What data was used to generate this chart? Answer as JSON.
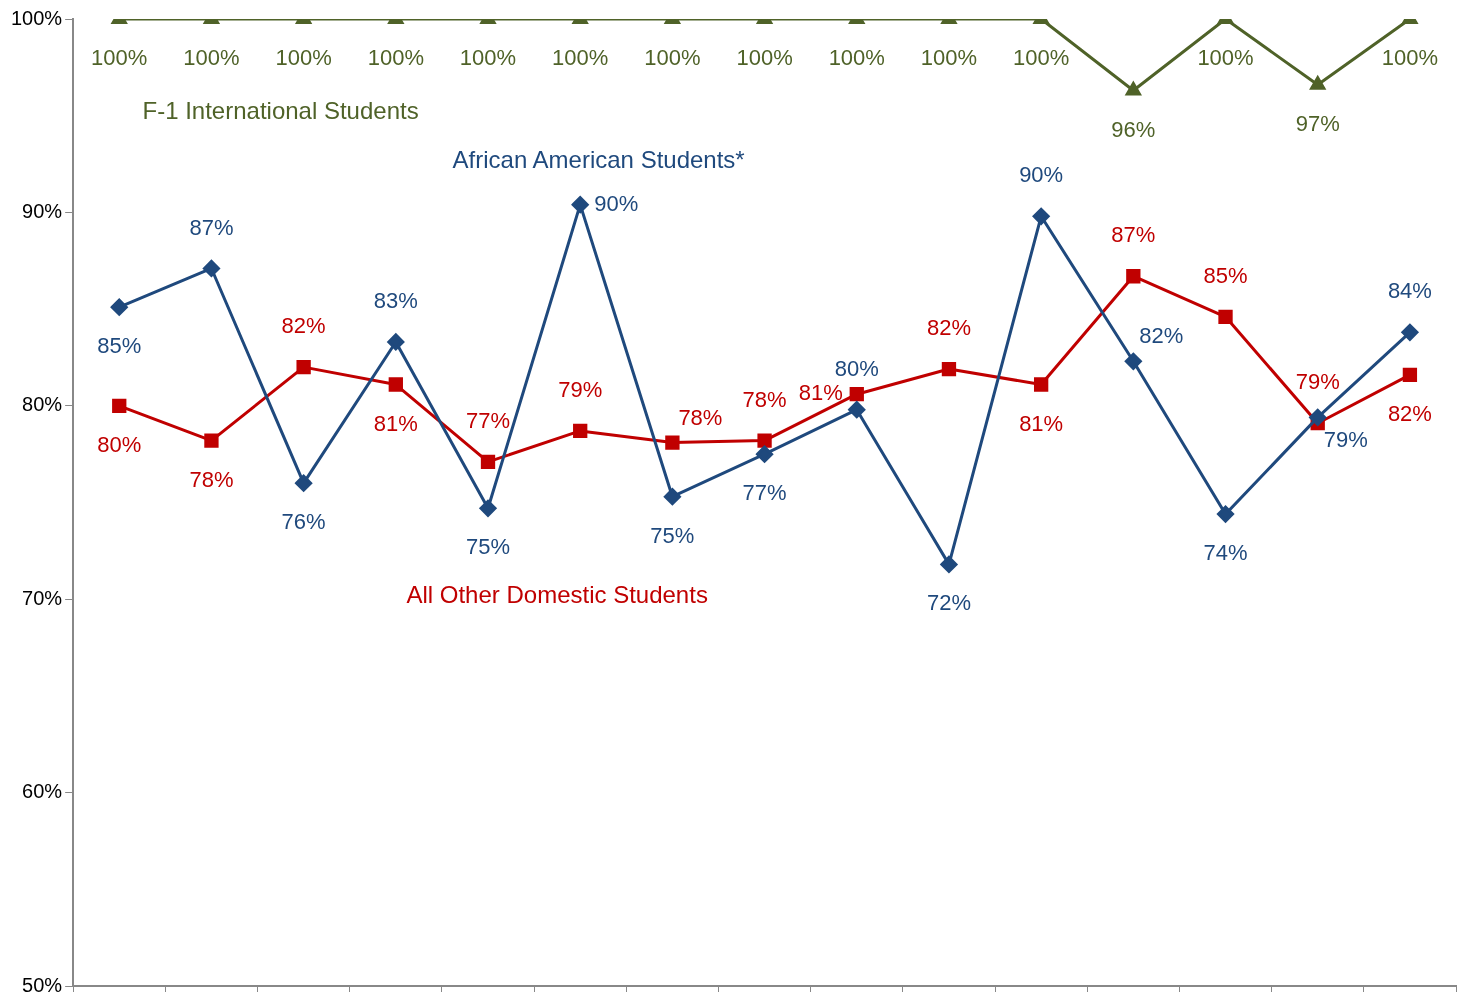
{
  "chart_data": {
    "type": "line",
    "categories": [
      null,
      null,
      null,
      null,
      null,
      null,
      null,
      null,
      null,
      null,
      null,
      null,
      null,
      null,
      null
    ],
    "series": [
      {
        "name": "F-1 International Students",
        "color": "#4f6228",
        "marker": "triangle",
        "values": [
          100,
          100,
          100,
          100,
          100,
          100,
          100,
          100,
          100,
          100,
          100,
          96.3,
          100,
          96.6,
          100
        ],
        "value_labels": [
          "100%",
          "100%",
          "100%",
          "100%",
          "100%",
          "100%",
          "100%",
          "100%",
          "100%",
          "100%",
          "100%",
          "96%",
          "100%",
          "97%",
          "100%"
        ]
      },
      {
        "name": "African American Students*",
        "color": "#1f497d",
        "marker": "diamond",
        "values": [
          85.1,
          87.1,
          76.0,
          83.3,
          74.7,
          90.4,
          75.3,
          77.5,
          79.8,
          71.8,
          89.8,
          82.3,
          74.4,
          79.4,
          83.8
        ],
        "value_labels": [
          "85%",
          "87%",
          "76%",
          "83%",
          "75%",
          "90%",
          "75%",
          "77%",
          "80%",
          "72%",
          "90%",
          "82%",
          "74%",
          "79%",
          "84%"
        ]
      },
      {
        "name": "All Other Domestic Students",
        "color": "#c00000",
        "marker": "square",
        "values": [
          80.0,
          78.2,
          82.0,
          81.1,
          77.1,
          78.7,
          78.1,
          78.2,
          80.6,
          81.9,
          81.1,
          86.7,
          84.6,
          79.1,
          81.6
        ],
        "value_labels": [
          "80%",
          "78%",
          "82%",
          "81%",
          "77%",
          "79%",
          "78%",
          "78%",
          "81%",
          "82%",
          "81%",
          "87%",
          "85%",
          "79%",
          "82%"
        ]
      }
    ],
    "ylim": [
      50,
      100
    ],
    "yticks": [
      {
        "value": 50,
        "label": "50%"
      },
      {
        "value": 60,
        "label": "60%"
      },
      {
        "value": 70,
        "label": "70%"
      },
      {
        "value": 80,
        "label": "80%"
      },
      {
        "value": 90,
        "label": "90%"
      },
      {
        "value": 100,
        "label": "100%"
      }
    ],
    "tick_labels": "y",
    "grid": false,
    "legend": false
  }
}
